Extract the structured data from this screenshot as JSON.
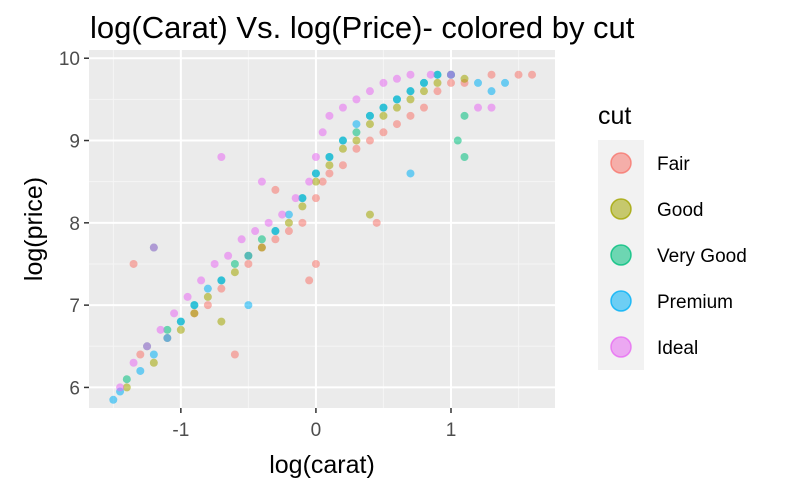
{
  "chart_data": {
    "type": "scatter",
    "title": "log(Carat) Vs. log(Price)- colored by cut",
    "xlabel": "log(carat)",
    "ylabel": "log(price)",
    "xlim": [
      -1.68,
      1.77
    ],
    "ylim": [
      5.75,
      10.1
    ],
    "x_ticks": [
      -1,
      0,
      1
    ],
    "x_tick_labels": [
      "-1",
      "0",
      "1"
    ],
    "y_ticks": [
      6,
      7,
      8,
      9,
      10
    ],
    "y_tick_labels": [
      "6",
      "7",
      "8",
      "9",
      "10"
    ],
    "grid": true,
    "background": "#ebebeb",
    "legend": {
      "title": "cut",
      "position": "right",
      "entries": [
        "Fair",
        "Good",
        "Very Good",
        "Premium",
        "Ideal"
      ]
    },
    "series": [
      {
        "name": "Fair",
        "color": "#F8766D",
        "points": [
          [
            -1.3,
            6.4
          ],
          [
            -1.1,
            6.6
          ],
          [
            -0.9,
            6.9
          ],
          [
            -0.8,
            7.0
          ],
          [
            -0.7,
            7.2
          ],
          [
            -0.5,
            7.5
          ],
          [
            -0.4,
            7.7
          ],
          [
            -0.3,
            7.8
          ],
          [
            -0.2,
            7.9
          ],
          [
            -0.1,
            8.0
          ],
          [
            0.0,
            8.3
          ],
          [
            0.05,
            8.5
          ],
          [
            0.1,
            8.6
          ],
          [
            0.2,
            8.7
          ],
          [
            0.3,
            8.9
          ],
          [
            0.4,
            9.0
          ],
          [
            0.5,
            9.1
          ],
          [
            0.6,
            9.2
          ],
          [
            0.7,
            9.3
          ],
          [
            0.8,
            9.4
          ],
          [
            0.9,
            9.6
          ],
          [
            1.0,
            9.7
          ],
          [
            1.1,
            9.7
          ],
          [
            1.3,
            9.8
          ],
          [
            1.5,
            9.8
          ],
          [
            1.6,
            9.8
          ],
          [
            -1.35,
            7.5
          ],
          [
            -0.05,
            7.3
          ],
          [
            0.0,
            7.5
          ],
          [
            -0.3,
            8.4
          ],
          [
            0.45,
            8.0
          ],
          [
            -0.6,
            6.4
          ]
        ]
      },
      {
        "name": "Good",
        "color": "#A3A500",
        "points": [
          [
            -1.4,
            6.0
          ],
          [
            -1.2,
            6.3
          ],
          [
            -1.0,
            6.7
          ],
          [
            -0.9,
            6.9
          ],
          [
            -0.8,
            7.1
          ],
          [
            -0.6,
            7.4
          ],
          [
            -0.5,
            7.6
          ],
          [
            -0.4,
            7.7
          ],
          [
            -0.2,
            8.0
          ],
          [
            -0.1,
            8.2
          ],
          [
            0.0,
            8.5
          ],
          [
            0.1,
            8.7
          ],
          [
            0.2,
            8.9
          ],
          [
            0.3,
            9.0
          ],
          [
            0.4,
            9.2
          ],
          [
            0.5,
            9.3
          ],
          [
            0.6,
            9.4
          ],
          [
            0.7,
            9.5
          ],
          [
            0.8,
            9.6
          ],
          [
            0.9,
            9.7
          ],
          [
            1.0,
            9.8
          ],
          [
            1.1,
            9.75
          ],
          [
            -0.7,
            6.8
          ],
          [
            0.4,
            8.1
          ]
        ]
      },
      {
        "name": "Very Good",
        "color": "#00BF7D",
        "points": [
          [
            -1.4,
            6.1
          ],
          [
            -1.25,
            6.5
          ],
          [
            -1.1,
            6.7
          ],
          [
            -1.0,
            6.8
          ],
          [
            -0.9,
            7.0
          ],
          [
            -0.7,
            7.3
          ],
          [
            -0.6,
            7.5
          ],
          [
            -0.4,
            7.8
          ],
          [
            -0.3,
            7.9
          ],
          [
            -0.1,
            8.3
          ],
          [
            0.0,
            8.6
          ],
          [
            0.1,
            8.8
          ],
          [
            0.2,
            9.0
          ],
          [
            0.3,
            9.1
          ],
          [
            0.4,
            9.3
          ],
          [
            0.5,
            9.4
          ],
          [
            0.6,
            9.5
          ],
          [
            0.7,
            9.6
          ],
          [
            0.8,
            9.7
          ],
          [
            0.9,
            9.8
          ],
          [
            1.0,
            9.8
          ],
          [
            1.1,
            9.3
          ],
          [
            1.05,
            9.0
          ],
          [
            1.1,
            8.8
          ],
          [
            -1.2,
            7.7
          ]
        ]
      },
      {
        "name": "Premium",
        "color": "#00B0F6",
        "points": [
          [
            -1.5,
            5.85
          ],
          [
            -1.45,
            5.95
          ],
          [
            -1.3,
            6.2
          ],
          [
            -1.2,
            6.4
          ],
          [
            -1.1,
            6.6
          ],
          [
            -1.0,
            6.8
          ],
          [
            -0.9,
            7.0
          ],
          [
            -0.8,
            7.2
          ],
          [
            -0.7,
            7.3
          ],
          [
            -0.5,
            7.6
          ],
          [
            -0.3,
            7.9
          ],
          [
            -0.2,
            8.1
          ],
          [
            -0.1,
            8.3
          ],
          [
            0.0,
            8.6
          ],
          [
            0.1,
            8.8
          ],
          [
            0.2,
            9.0
          ],
          [
            0.3,
            9.2
          ],
          [
            0.4,
            9.3
          ],
          [
            0.5,
            9.4
          ],
          [
            0.6,
            9.5
          ],
          [
            0.7,
            9.6
          ],
          [
            0.8,
            9.7
          ],
          [
            0.9,
            9.8
          ],
          [
            1.0,
            9.8
          ],
          [
            1.2,
            9.7
          ],
          [
            1.4,
            9.7
          ],
          [
            1.3,
            9.6
          ],
          [
            0.7,
            8.6
          ],
          [
            -0.5,
            7.0
          ]
        ]
      },
      {
        "name": "Ideal",
        "color": "#E76BF3",
        "points": [
          [
            -1.45,
            6.0
          ],
          [
            -1.35,
            6.3
          ],
          [
            -1.25,
            6.5
          ],
          [
            -1.15,
            6.7
          ],
          [
            -1.05,
            6.9
          ],
          [
            -0.95,
            7.1
          ],
          [
            -0.85,
            7.3
          ],
          [
            -0.75,
            7.5
          ],
          [
            -0.65,
            7.6
          ],
          [
            -0.55,
            7.8
          ],
          [
            -0.45,
            7.9
          ],
          [
            -0.35,
            8.0
          ],
          [
            -0.25,
            8.1
          ],
          [
            -0.15,
            8.3
          ],
          [
            -0.05,
            8.5
          ],
          [
            0.0,
            8.8
          ],
          [
            0.05,
            9.1
          ],
          [
            0.1,
            9.3
          ],
          [
            0.2,
            9.4
          ],
          [
            0.3,
            9.5
          ],
          [
            0.4,
            9.6
          ],
          [
            0.5,
            9.7
          ],
          [
            0.6,
            9.75
          ],
          [
            0.7,
            9.8
          ],
          [
            0.85,
            9.8
          ],
          [
            1.0,
            9.8
          ],
          [
            -0.7,
            8.8
          ],
          [
            -1.2,
            7.7
          ],
          [
            -0.4,
            8.5
          ],
          [
            1.2,
            9.4
          ],
          [
            1.3,
            9.4
          ]
        ]
      }
    ]
  }
}
